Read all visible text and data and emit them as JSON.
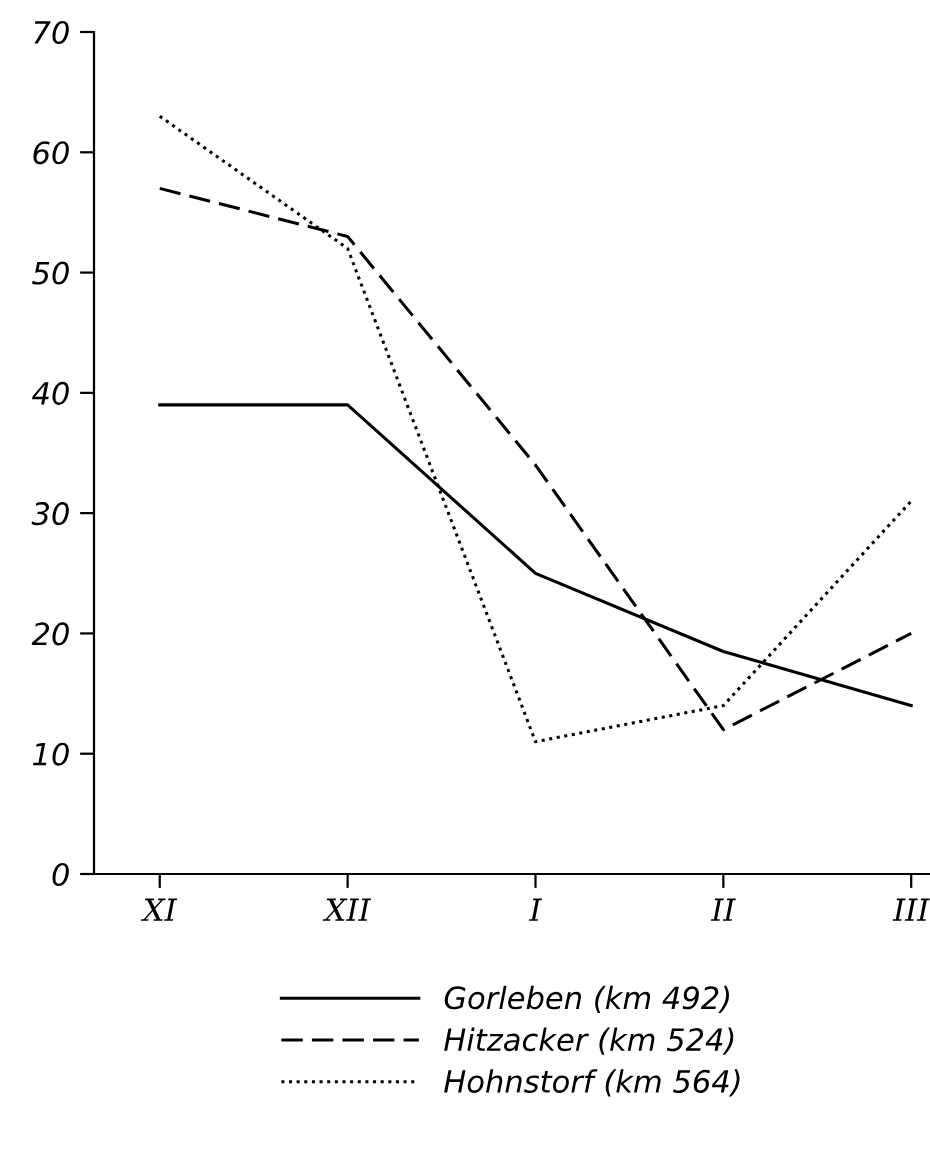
{
  "chart_data": {
    "type": "line",
    "categories": [
      "XI",
      "XII",
      "I",
      "II",
      "III"
    ],
    "series": [
      {
        "name": "Gorleben (km 492)",
        "color": "#000000",
        "line_style": "solid",
        "values": [
          39,
          39,
          25,
          18.5,
          14
        ]
      },
      {
        "name": "Hitzacker (km 524)",
        "color": "#000000",
        "line_style": "dashed",
        "values": [
          57,
          53,
          34,
          12,
          20
        ]
      },
      {
        "name": "Hohnstorf (km 564)",
        "color": "#000000",
        "line_style": "dotted",
        "values": [
          63,
          52,
          11,
          14,
          31
        ]
      }
    ],
    "ylim": [
      0,
      70
    ],
    "yticks": [
      0,
      10,
      20,
      30,
      40,
      50,
      60,
      70
    ],
    "grid": false,
    "legend": "bottom",
    "marker": "none"
  }
}
